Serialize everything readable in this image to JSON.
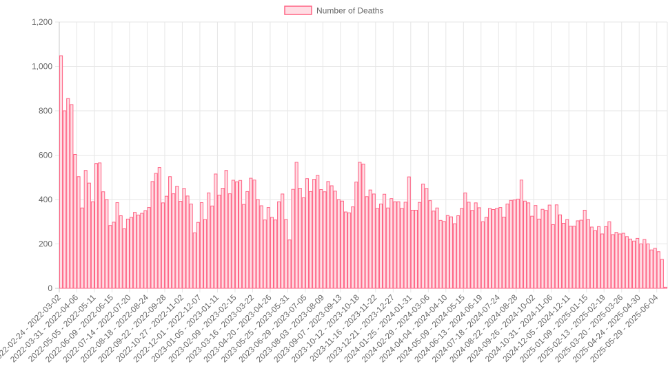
{
  "chart_data": {
    "type": "bar",
    "legend": {
      "position": "top-center"
    },
    "series": [
      {
        "name": "Number of Deaths",
        "border_color": "#ff6384",
        "fill_color": "#ffdde4",
        "values": [
          1048,
          800,
          855,
          828,
          603,
          503,
          362,
          531,
          474,
          390,
          562,
          565,
          435,
          400,
          283,
          298,
          386,
          327,
          268,
          312,
          320,
          342,
          330,
          338,
          350,
          364,
          481,
          518,
          544,
          385,
          415,
          503,
          426,
          460,
          392,
          450,
          416,
          380,
          250,
          297,
          386,
          310,
          430,
          371,
          515,
          420,
          451,
          531,
          426,
          487,
          480,
          486,
          378,
          436,
          496,
          488,
          400,
          372,
          308,
          364,
          320,
          308,
          390,
          425,
          310,
          218,
          446,
          568,
          451,
          408,
          494,
          436,
          491,
          509,
          445,
          435,
          481,
          462,
          438,
          400,
          393,
          344,
          340,
          367,
          479,
          568,
          560,
          413,
          443,
          425,
          360,
          380,
          424,
          362,
          404,
          390,
          390,
          360,
          388,
          502,
          352,
          352,
          387,
          470,
          450,
          395,
          348,
          362,
          306,
          301,
          328,
          322,
          291,
          327,
          360,
          430,
          388,
          351,
          385,
          363,
          300,
          320,
          360,
          355,
          360,
          364,
          321,
          380,
          396,
          398,
          402,
          488,
          393,
          385,
          325,
          373,
          312,
          356,
          351,
          375,
          287,
          376,
          331,
          293,
          310,
          280,
          280,
          304,
          307,
          352,
          310,
          276,
          260,
          278,
          245,
          278,
          300,
          242,
          252,
          245,
          248,
          233,
          222,
          213,
          225,
          200,
          220,
          200,
          173,
          180,
          165,
          130,
          5
        ]
      }
    ],
    "x_tick_labels": [
      "2022-02-24 - 2022-03-02",
      "2022-03-31 - 2022-04-06",
      "2022-05-05 - 2022-05-11",
      "2022-06-09 - 2022-06-15",
      "2022-07-14 - 2022-07-20",
      "2022-08-18 - 2022-08-24",
      "2022-09-22 - 2022-09-28",
      "2022-10-27 - 2022-11-02",
      "2022-12-01 - 2022-12-07",
      "2023-01-05 - 2023-01-11",
      "2023-02-09 - 2023-02-15",
      "2023-03-16 - 2023-03-22",
      "2023-04-20 - 2023-04-26",
      "2023-05-25 - 2023-05-31",
      "2023-06-29 - 2023-07-05",
      "2023-08-03 - 2023-08-09",
      "2023-09-07 - 2023-09-13",
      "2023-10-12 - 2023-10-18",
      "2023-11-16 - 2023-11-22",
      "2023-12-21 - 2023-12-27",
      "2024-01-25 - 2024-01-31",
      "2024-02-29 - 2024-03-06",
      "2024-04-04 - 2024-04-10",
      "2024-05-09 - 2024-05-15",
      "2024-06-13 - 2024-06-19",
      "2024-07-18 - 2024-07-24",
      "2024-08-22 - 2024-08-28",
      "2024-09-26 - 2024-10-02",
      "2024-10-31 - 2024-11-06",
      "2024-12-05 - 2024-12-11",
      "2025-01-09 - 2025-01-15",
      "2025-02-13 - 2025-02-19",
      "2025-03-20 - 2025-03-26",
      "2025-04-24 - 2025-04-30",
      "2025-05-29 - 2025-06-04"
    ],
    "y_tick_labels": [
      "0",
      "200",
      "400",
      "600",
      "800",
      "1,000",
      "1,200"
    ],
    "ylim": [
      0,
      1200
    ],
    "grid": true,
    "title": "",
    "xlabel": "",
    "ylabel": ""
  }
}
